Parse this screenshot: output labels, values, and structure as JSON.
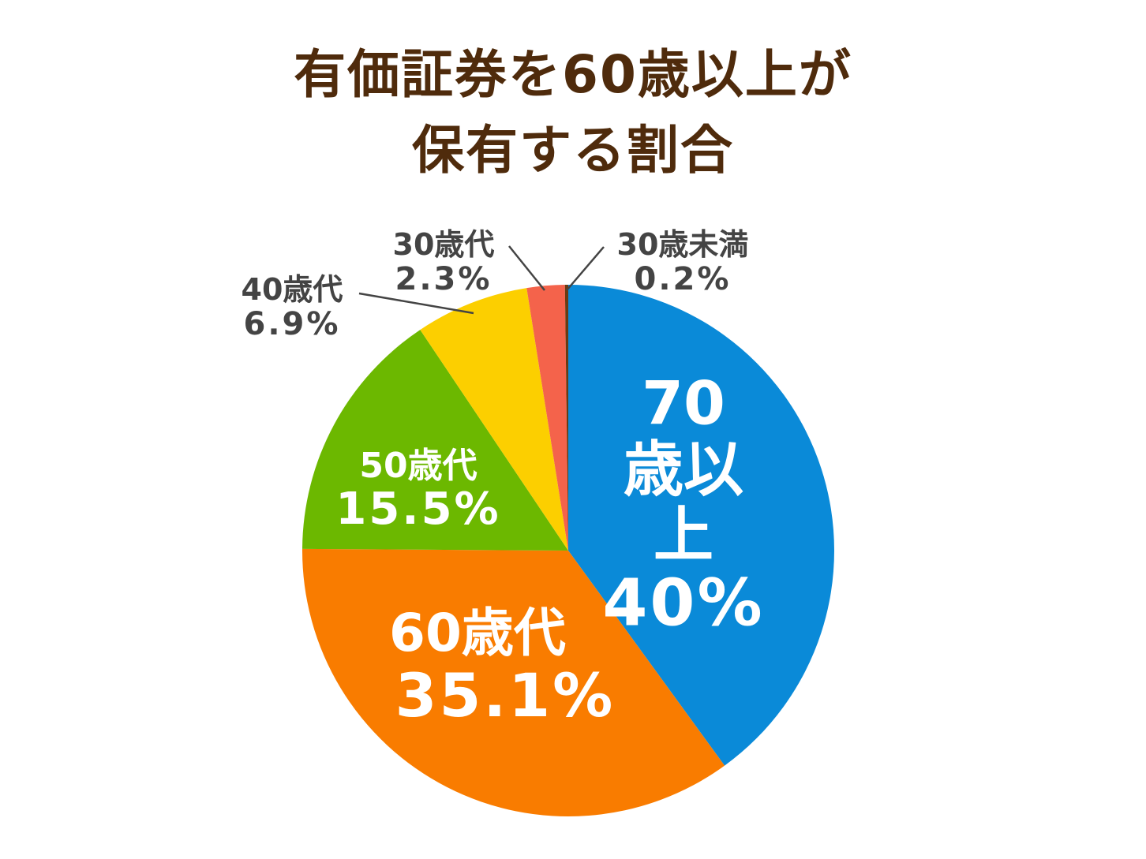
{
  "chart_data": {
    "type": "pie",
    "title": [
      "有価証券を60歳以上が",
      "保有する割合"
    ],
    "categories": [
      "70歳以上",
      "60歳代",
      "50歳代",
      "40歳代",
      "30歳代",
      "30歳未満"
    ],
    "values": [
      40,
      35.1,
      15.5,
      6.9,
      2.3,
      0.2
    ],
    "value_labels": [
      "40%",
      "35.1%",
      "15.5%",
      "6.9%",
      "2.3%",
      "0.2%"
    ],
    "colors": [
      "#0a8ad8",
      "#f97c00",
      "#6cb800",
      "#fccf00",
      "#f4634b",
      "#6b3a12"
    ]
  }
}
